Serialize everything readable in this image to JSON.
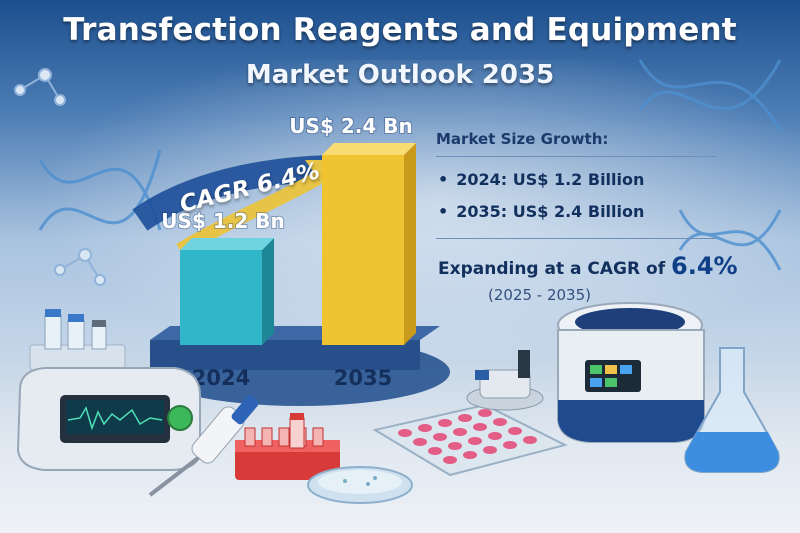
{
  "header": {
    "title": "Transfection Reagents and Equipment",
    "subtitle": "Market Outlook 2035"
  },
  "chart_data": {
    "type": "bar",
    "categories": [
      "2024",
      "2035"
    ],
    "values": [
      1.2,
      2.4
    ],
    "value_labels": [
      "US$ 1.2 Bn",
      "US$ 2.4 Bn"
    ],
    "ylim": [
      0,
      2.4
    ],
    "cagr_label": "CAGR 6.4%",
    "colors": [
      "#2fb6c8",
      "#f0c330"
    ],
    "grid": false
  },
  "panel": {
    "heading": "Market Size Growth:",
    "items": [
      "2024: US$ 1.2 Billion",
      "2035: US$ 2.4 Billion"
    ],
    "expand_prefix": "Expanding at a CAGR of",
    "expand_value": "6.4%",
    "period": "(2025 - 2035)"
  },
  "decor": {
    "icons": [
      "dna-helix-icon",
      "molecule-icon",
      "electroporation-device-icon",
      "pipette-icon",
      "tube-rack-icon",
      "petri-dish-icon",
      "well-plate-icon",
      "incubator-icon",
      "flask-icon",
      "vials-icon"
    ]
  }
}
